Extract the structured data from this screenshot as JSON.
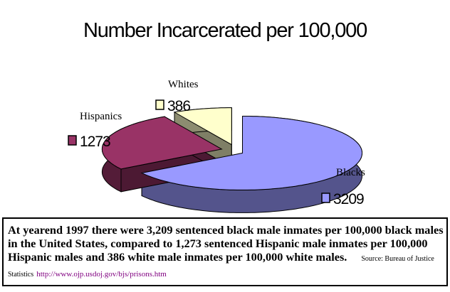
{
  "chart_data": {
    "type": "pie",
    "title": "Number Incarcerated per 100,000",
    "categories": [
      "Blacks",
      "Hispanics",
      "Whites"
    ],
    "values": [
      3209,
      1273,
      386
    ],
    "colors": [
      "#9999ff",
      "#993366",
      "#ffffcc"
    ],
    "caption": "At yearend 1997 there were 3,209 sentenced black male inmates per 100,000 black males in the United States, compared to 1,273 sentenced Hispanic male inmates per 100,000 Hispanic males and 386 white male inmates per 100,000 white males.",
    "source": "Source: Bureau of Justice Statistics",
    "source_url": "http://www.ojp.usdoj.gov/bjs/prisons.htm"
  }
}
